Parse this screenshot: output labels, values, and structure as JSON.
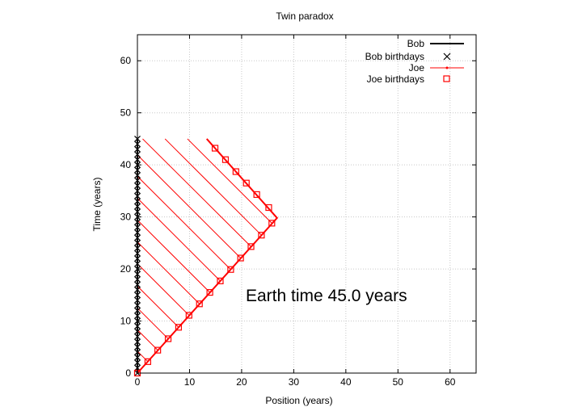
{
  "chart_data": {
    "type": "line",
    "title": "Twin paradox",
    "xlabel": "Position (years)",
    "ylabel": "Time (years)",
    "xlim": [
      0,
      65
    ],
    "ylim": [
      0,
      65
    ],
    "xticks": [
      0,
      10,
      20,
      30,
      40,
      50,
      60
    ],
    "yticks": [
      0,
      10,
      20,
      30,
      40,
      50,
      60
    ],
    "grid": true,
    "legend_position": "top-right",
    "annotation": "Earth time 45.0 years",
    "series": [
      {
        "name": "Bob",
        "color": "#000000",
        "style": "line",
        "points": [
          [
            0,
            0
          ],
          [
            0,
            45
          ]
        ]
      },
      {
        "name": "Bob birthdays",
        "color": "#000000",
        "style": "x-markers",
        "points": [
          [
            0,
            0
          ],
          [
            0,
            1
          ],
          [
            0,
            2
          ],
          [
            0,
            3
          ],
          [
            0,
            4
          ],
          [
            0,
            5
          ],
          [
            0,
            6
          ],
          [
            0,
            7
          ],
          [
            0,
            8
          ],
          [
            0,
            9
          ],
          [
            0,
            10
          ],
          [
            0,
            11
          ],
          [
            0,
            12
          ],
          [
            0,
            13
          ],
          [
            0,
            14
          ],
          [
            0,
            15
          ],
          [
            0,
            16
          ],
          [
            0,
            17
          ],
          [
            0,
            18
          ],
          [
            0,
            19
          ],
          [
            0,
            20
          ],
          [
            0,
            21
          ],
          [
            0,
            22
          ],
          [
            0,
            23
          ],
          [
            0,
            24
          ],
          [
            0,
            25
          ],
          [
            0,
            26
          ],
          [
            0,
            27
          ],
          [
            0,
            28
          ],
          [
            0,
            29
          ],
          [
            0,
            30
          ],
          [
            0,
            31
          ],
          [
            0,
            32
          ],
          [
            0,
            33
          ],
          [
            0,
            34
          ],
          [
            0,
            35
          ],
          [
            0,
            36
          ],
          [
            0,
            37
          ],
          [
            0,
            38
          ],
          [
            0,
            39
          ],
          [
            0,
            40
          ],
          [
            0,
            41
          ],
          [
            0,
            42
          ],
          [
            0,
            43
          ],
          [
            0,
            44
          ],
          [
            0,
            45
          ]
        ]
      },
      {
        "name": "Joe",
        "color": "#ff0000",
        "style": "line",
        "points": [
          [
            0,
            0
          ],
          [
            26.8,
            29.8
          ],
          [
            13.3,
            45
          ]
        ]
      },
      {
        "name": "Joe birthdays",
        "color": "#ff0000",
        "style": "square-markers",
        "points": [
          [
            0,
            0
          ],
          [
            2,
            2.2
          ],
          [
            3.9,
            4.4
          ],
          [
            5.9,
            6.6
          ],
          [
            7.9,
            8.8
          ],
          [
            9.9,
            11.1
          ],
          [
            11.9,
            13.3
          ],
          [
            13.9,
            15.5
          ],
          [
            15.9,
            17.7
          ],
          [
            17.9,
            19.9
          ],
          [
            19.8,
            22.1
          ],
          [
            21.8,
            24.3
          ],
          [
            23.8,
            26.5
          ],
          [
            25.8,
            28.8
          ],
          [
            25.2,
            31.8
          ],
          [
            22.9,
            34.3
          ],
          [
            20.9,
            36.5
          ],
          [
            18.9,
            38.7
          ],
          [
            16.9,
            41.0
          ],
          [
            14.9,
            43.2
          ]
        ]
      }
    ],
    "signal_lines": {
      "color": "#ff0000",
      "description_units": "Joe worldline point to Bob's worldline",
      "segments": [
        [
          [
            0,
            0
          ],
          [
            0,
            0
          ]
        ],
        [
          [
            2,
            2.2
          ],
          [
            0,
            4.2
          ]
        ],
        [
          [
            3.9,
            4.4
          ],
          [
            0,
            8.3
          ]
        ],
        [
          [
            5.9,
            6.6
          ],
          [
            0,
            12.5
          ]
        ],
        [
          [
            7.9,
            8.8
          ],
          [
            0,
            16.7
          ]
        ],
        [
          [
            9.9,
            11.1
          ],
          [
            0,
            21.0
          ]
        ],
        [
          [
            11.9,
            13.3
          ],
          [
            0,
            25.2
          ]
        ],
        [
          [
            13.9,
            15.5
          ],
          [
            0,
            29.4
          ]
        ],
        [
          [
            15.9,
            17.7
          ],
          [
            0,
            33.6
          ]
        ],
        [
          [
            17.9,
            19.9
          ],
          [
            0,
            37.8
          ]
        ],
        [
          [
            19.8,
            22.1
          ],
          [
            0,
            41.9
          ]
        ],
        [
          [
            21.8,
            24.3
          ],
          [
            1,
            45
          ]
        ],
        [
          [
            23.8,
            26.5
          ],
          [
            5.3,
            45
          ]
        ],
        [
          [
            25.8,
            28.8
          ],
          [
            9.6,
            45
          ]
        ]
      ]
    }
  }
}
